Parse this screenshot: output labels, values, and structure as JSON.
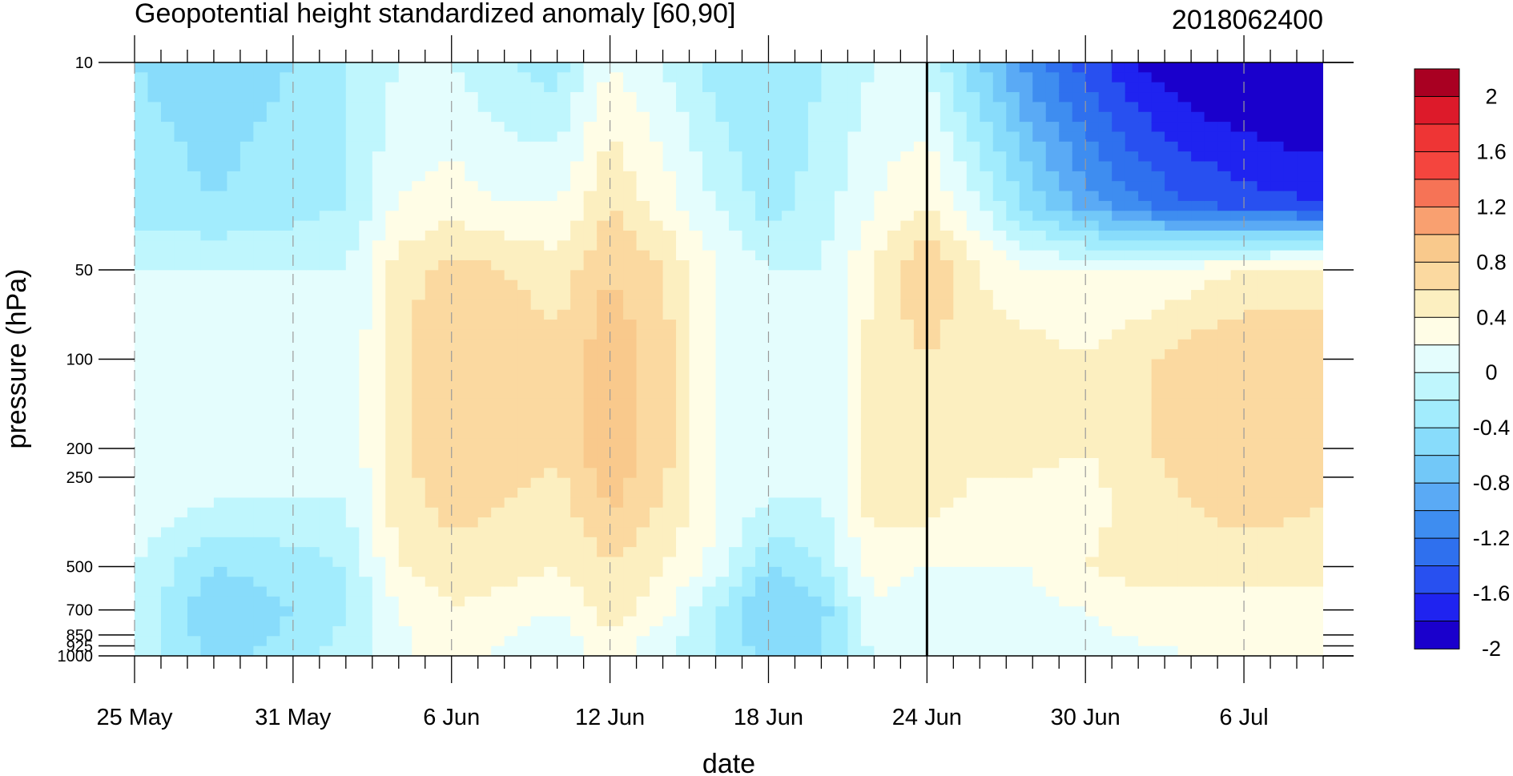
{
  "chart_data": {
    "type": "heatmap",
    "title": "Geopotential height standardized anomaly [60,90]",
    "subtitle": "2018062400",
    "xlabel": "date",
    "ylabel": "pressure (hPa)",
    "x_ticks": [
      {
        "day": 0,
        "label": "25 May"
      },
      {
        "day": 6,
        "label": "31 May"
      },
      {
        "day": 12,
        "label": "6 Jun"
      },
      {
        "day": 18,
        "label": "12 Jun"
      },
      {
        "day": 24,
        "label": "18 Jun"
      },
      {
        "day": 30,
        "label": "24 Jun"
      },
      {
        "day": 36,
        "label": "30 Jun"
      },
      {
        "day": 42,
        "label": "6 Jul"
      }
    ],
    "x_range_days": [
      0,
      45
    ],
    "y_scale": "log",
    "y_ticks": [
      {
        "value": 10,
        "label": "10"
      },
      {
        "value": 50,
        "label": "50"
      },
      {
        "value": 100,
        "label": "100"
      },
      {
        "value": 200,
        "label": "200"
      },
      {
        "value": 250,
        "label": "250"
      },
      {
        "value": 500,
        "label": "500"
      },
      {
        "value": 700,
        "label": "700"
      },
      {
        "value": 850,
        "label": "850"
      },
      {
        "value": 925,
        "label": "925"
      },
      {
        "value": 1000,
        "label": "1000"
      }
    ],
    "y_range": [
      10,
      1000
    ],
    "forecast_line_day": 30,
    "colorbar": {
      "colors": [
        "#1a00cc",
        "#1f23f0",
        "#2850f0",
        "#2f70ee",
        "#3e8df0",
        "#5aaaf5",
        "#72c8f8",
        "#88dcfb",
        "#a2ecfd",
        "#bff6fd",
        "#e4fdfd",
        "#fffde6",
        "#fcefc0",
        "#fbd9a0",
        "#f9c98c",
        "#f9a070",
        "#f67356",
        "#f4453e",
        "#ee3535",
        "#dd1a2a",
        "#a90022"
      ],
      "labels": [
        "2",
        "1.6",
        "1.2",
        "0.8",
        "0.4",
        "0",
        "-0.4",
        "-0.8",
        "-1.2",
        "-1.6",
        "-2"
      ]
    },
    "columns": [
      {
        "day": 0,
        "values": [
          -0.5,
          -0.4,
          -0.1,
          0.1,
          0.1,
          0.1,
          -0.1,
          -0.1,
          -0.1
        ]
      },
      {
        "day": 3,
        "values": [
          -0.6,
          -0.5,
          -0.1,
          -0.1,
          -0.1,
          -0.1,
          -0.5,
          -0.7,
          -0.6
        ]
      },
      {
        "day": 6,
        "values": [
          -0.5,
          -0.4,
          -0.1,
          -0.1,
          -0.1,
          -0.1,
          -0.4,
          -0.5,
          -0.4
        ]
      },
      {
        "day": 8,
        "values": [
          -0.3,
          -0.3,
          -0.1,
          -0.1,
          -0.1,
          -0.1,
          -0.3,
          -0.3,
          -0.2
        ]
      },
      {
        "day": 10,
        "values": [
          -0.1,
          0.1,
          0.4,
          0.45,
          0.45,
          0.4,
          0.3,
          0.1,
          0.05
        ]
      },
      {
        "day": 12,
        "values": [
          -0.1,
          0.2,
          0.6,
          0.7,
          0.7,
          0.6,
          0.4,
          0.3,
          0.2
        ]
      },
      {
        "day": 14,
        "values": [
          -0.3,
          0.1,
          0.5,
          0.65,
          0.65,
          0.5,
          0.4,
          0.2,
          0.05
        ]
      },
      {
        "day": 16,
        "values": [
          -0.4,
          0.1,
          0.4,
          0.55,
          0.55,
          0.4,
          0.3,
          0.1,
          -0.1
        ]
      },
      {
        "day": 18,
        "values": [
          0.1,
          0.5,
          0.7,
          0.85,
          0.85,
          0.75,
          0.5,
          0.4,
          0.2
        ]
      },
      {
        "day": 20,
        "values": [
          -0.1,
          0.2,
          0.5,
          0.6,
          0.6,
          0.5,
          0.3,
          0.2,
          -0.1
        ]
      },
      {
        "day": 22,
        "values": [
          -0.4,
          -0.1,
          0.1,
          0.1,
          0.1,
          0.1,
          0.05,
          -0.3,
          -0.3
        ]
      },
      {
        "day": 24,
        "values": [
          -0.5,
          -0.4,
          -0.1,
          -0.1,
          -0.1,
          -0.1,
          -0.5,
          -0.7,
          -0.6
        ]
      },
      {
        "day": 26,
        "values": [
          -0.3,
          -0.2,
          -0.1,
          -0.1,
          -0.1,
          -0.1,
          -0.3,
          -0.6,
          -0.5
        ]
      },
      {
        "day": 28,
        "values": [
          -0.1,
          0.1,
          0.3,
          0.4,
          0.4,
          0.4,
          0.2,
          0.1,
          -0.1
        ]
      },
      {
        "day": 30,
        "values": [
          -0.1,
          0.3,
          0.7,
          0.5,
          0.5,
          0.4,
          0.1,
          -0.1,
          -0.1
        ]
      },
      {
        "day": 32,
        "values": [
          -0.7,
          -0.1,
          0.3,
          0.4,
          0.4,
          0.2,
          0.1,
          -0.1,
          -0.1
        ]
      },
      {
        "day": 34,
        "values": [
          -1.2,
          -0.6,
          0.1,
          0.4,
          0.4,
          0.2,
          0.1,
          0.05,
          -0.05
        ]
      },
      {
        "day": 36,
        "values": [
          -1.6,
          -1.0,
          0.1,
          0.3,
          0.3,
          0.2,
          0.3,
          0.1,
          0.05
        ]
      },
      {
        "day": 38,
        "values": [
          -1.9,
          -1.3,
          0.1,
          0.45,
          0.45,
          0.4,
          0.4,
          0.2,
          0.05
        ]
      },
      {
        "day": 40,
        "values": [
          -2.1,
          -1.5,
          0.2,
          0.6,
          0.6,
          0.5,
          0.4,
          0.2,
          0.1
        ]
      },
      {
        "day": 42,
        "values": [
          -2.2,
          -1.6,
          0.3,
          0.7,
          0.7,
          0.6,
          0.4,
          0.2,
          0.1
        ]
      },
      {
        "day": 45,
        "values": [
          -2.3,
          -1.7,
          0.4,
          0.6,
          0.6,
          0.5,
          0.4,
          0.2,
          0.1
        ]
      }
    ],
    "levels_hpa": [
      10,
      30,
      50,
      100,
      200,
      300,
      500,
      700,
      1000
    ]
  }
}
